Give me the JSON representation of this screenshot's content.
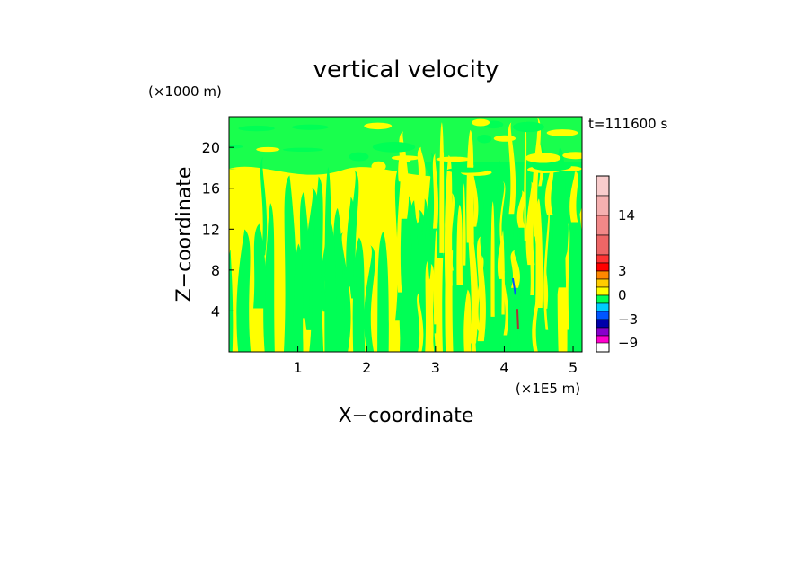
{
  "chart_data": {
    "type": "heatmap",
    "title": "vertical velocity",
    "xlabel": "X−coordinate",
    "ylabel": "Z−coordinate",
    "x_unit": "(×1E5 m)",
    "y_unit": "(×1000 m)",
    "time_label": "t=111600 s",
    "xlim": [
      0,
      5.13
    ],
    "ylim": [
      0,
      23
    ],
    "x_ticks": [
      1,
      2,
      3,
      4,
      5
    ],
    "y_ticks": [
      4,
      8,
      12,
      16,
      20
    ],
    "field_colors": {
      "positive": "#ffff00",
      "negative": "#00ff55"
    },
    "colorbar": {
      "levels": [
        -9,
        -7,
        -5,
        -3,
        -2,
        -1,
        0,
        1,
        2,
        3,
        5,
        8,
        11,
        14,
        17,
        20
      ],
      "colors": [
        "#ff00cc",
        "#8800cc",
        "#0000aa",
        "#0055ff",
        "#00ccff",
        "#00ff55",
        "#ffff00",
        "#ffcc00",
        "#ff8800",
        "#ff0000",
        "#ff3333",
        "#ee6666",
        "#f28888",
        "#f5b0b0",
        "#f8cccc"
      ],
      "tick_labels": [
        {
          "value": 14,
          "label": "14"
        },
        {
          "value": 3,
          "label": "3"
        },
        {
          "value": 0,
          "label": "0"
        },
        {
          "value": -3,
          "label": "−3"
        },
        {
          "value": -9,
          "label": "−9"
        }
      ]
    }
  }
}
